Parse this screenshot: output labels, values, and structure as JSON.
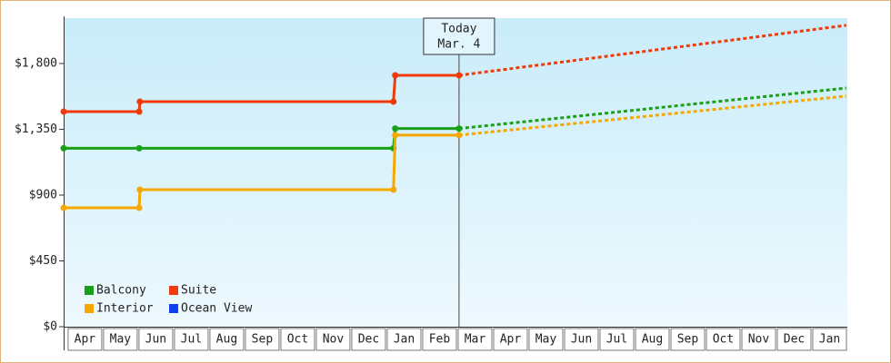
{
  "chart_data": {
    "type": "line",
    "xlim": [
      -0.1,
      22
    ],
    "ylim": [
      0,
      2110
    ],
    "xticks": [
      {
        "value": 0,
        "label": "Apr"
      },
      {
        "value": 1,
        "label": "May"
      },
      {
        "value": 2,
        "label": "Jun"
      },
      {
        "value": 3,
        "label": "Jul"
      },
      {
        "value": 4,
        "label": "Aug"
      },
      {
        "value": 5,
        "label": "Sep"
      },
      {
        "value": 6,
        "label": "Oct"
      },
      {
        "value": 7,
        "label": "Nov"
      },
      {
        "value": 8,
        "label": "Dec"
      },
      {
        "value": 9,
        "label": "Jan"
      },
      {
        "value": 10,
        "label": "Feb"
      },
      {
        "value": 11,
        "label": "Mar"
      },
      {
        "value": 12,
        "label": "Apr"
      },
      {
        "value": 13,
        "label": "May"
      },
      {
        "value": 14,
        "label": "Jun"
      },
      {
        "value": 15,
        "label": "Jul"
      },
      {
        "value": 16,
        "label": "Aug"
      },
      {
        "value": 17,
        "label": "Sep"
      },
      {
        "value": 18,
        "label": "Oct"
      },
      {
        "value": 19,
        "label": "Nov"
      },
      {
        "value": 20,
        "label": "Dec"
      },
      {
        "value": 21,
        "label": "Jan"
      }
    ],
    "yticks": [
      {
        "value": 0,
        "label": "$0"
      },
      {
        "value": 450,
        "label": "$450"
      },
      {
        "value": 900,
        "label": "$900"
      },
      {
        "value": 1350,
        "label": "$1,350"
      },
      {
        "value": 1800,
        "label": "$1,800"
      }
    ],
    "today": {
      "x": 11.05,
      "label": "Today",
      "date": "Mar. 4"
    },
    "series": [
      {
        "name": "Balcony",
        "color": "#18a018",
        "x": [
          -0.1,
          2.03,
          9.2,
          9.25,
          11.05
        ],
        "values": [
          1220,
          1220,
          1220,
          1355,
          1355
        ],
        "projected_x": [
          11.05,
          21.97
        ],
        "projected_values": [
          1355,
          1632
        ]
      },
      {
        "name": "Suite",
        "color": "#f03a0a",
        "x": [
          -0.1,
          2.03,
          2.05,
          9.2,
          9.25,
          11.05
        ],
        "values": [
          1471,
          1471,
          1539,
          1539,
          1719,
          1719
        ],
        "projected_x": [
          11.05,
          21.97
        ],
        "projected_values": [
          1719,
          2061
        ]
      },
      {
        "name": "Interior",
        "color": "#f5a800",
        "x": [
          -0.1,
          2.03,
          2.05,
          9.2,
          9.25,
          11.05
        ],
        "values": [
          813,
          813,
          937,
          937,
          1310,
          1310
        ],
        "projected_x": [
          11.05,
          21.97
        ],
        "projected_values": [
          1310,
          1577
        ]
      },
      {
        "name": "Ocean View",
        "color": "#1040f0",
        "x": [],
        "values": [],
        "projected_x": [],
        "projected_values": []
      }
    ]
  }
}
